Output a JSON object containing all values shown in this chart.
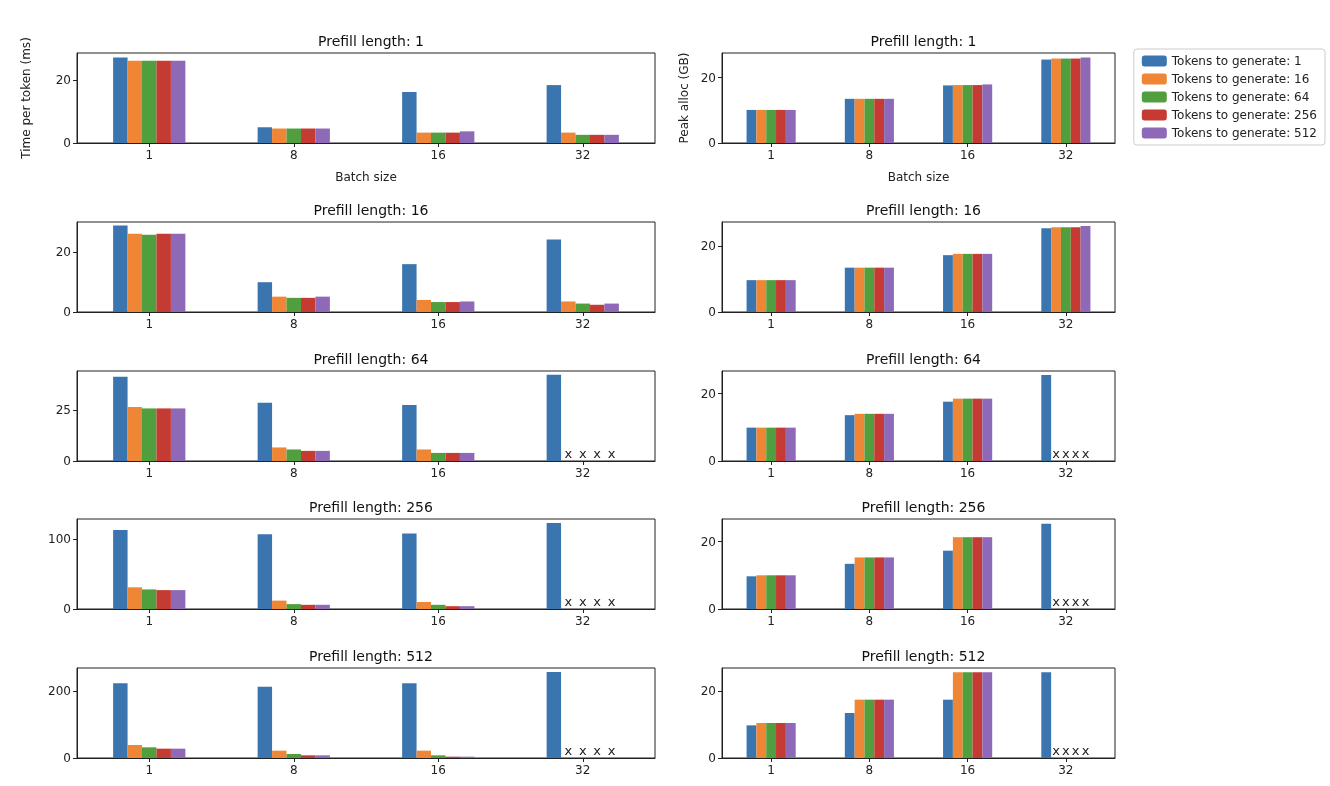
{
  "chart_data": [
    {
      "type": "bar",
      "title": "Prefill length: 1",
      "xlabel": "Batch size",
      "ylabel": "Time per token (ms)",
      "categories": [
        "1",
        "8",
        "16",
        "32"
      ],
      "ylim": [
        0,
        28.6
      ],
      "yticks": [
        0,
        20
      ],
      "series": [
        {
          "color": "#3b75af",
          "values": [
            27.2,
            5.0,
            16.2,
            18.4
          ]
        },
        {
          "color": "#ef8636",
          "values": [
            26.1,
            4.6,
            3.3,
            3.3
          ]
        },
        {
          "color": "#519e3e",
          "values": [
            26.1,
            4.6,
            3.3,
            2.6
          ]
        },
        {
          "color": "#c53a32",
          "values": [
            26.1,
            4.6,
            3.3,
            2.6
          ]
        },
        {
          "color": "#8d69b8",
          "values": [
            26.1,
            4.6,
            3.7,
            2.6
          ]
        }
      ]
    },
    {
      "type": "bar",
      "title": "Prefill length: 1",
      "xlabel": "Batch size",
      "ylabel": "Peak alloc (GB)",
      "categories": [
        "1",
        "8",
        "16",
        "32"
      ],
      "ylim": [
        0,
        27.5
      ],
      "yticks": [
        0,
        20
      ],
      "legend": "top right",
      "series": [
        {
          "name": "Tokens to generate: 1",
          "color": "#3b75af",
          "values": [
            10.1,
            13.5,
            17.6,
            25.5
          ]
        },
        {
          "name": "Tokens to generate: 16",
          "color": "#ef8636",
          "values": [
            10.1,
            13.5,
            17.7,
            25.8
          ]
        },
        {
          "name": "Tokens to generate: 64",
          "color": "#519e3e",
          "values": [
            10.1,
            13.5,
            17.7,
            25.8
          ]
        },
        {
          "name": "Tokens to generate: 256",
          "color": "#c53a32",
          "values": [
            10.1,
            13.5,
            17.7,
            25.8
          ]
        },
        {
          "name": "Tokens to generate: 512",
          "color": "#8d69b8",
          "values": [
            10.1,
            13.5,
            17.9,
            26.1
          ]
        }
      ]
    },
    {
      "type": "bar",
      "title": "Prefill length: 16",
      "categories": [
        "1",
        "8",
        "16",
        "32"
      ],
      "ylim": [
        0,
        29.9
      ],
      "yticks": [
        0,
        20
      ],
      "series": [
        {
          "color": "#3b75af",
          "values": [
            28.7,
            9.9,
            15.9,
            24.1
          ]
        },
        {
          "color": "#ef8636",
          "values": [
            26.0,
            5.1,
            4.0,
            3.5
          ]
        },
        {
          "color": "#519e3e",
          "values": [
            25.7,
            4.7,
            3.3,
            2.8
          ]
        },
        {
          "color": "#c53a32",
          "values": [
            26.0,
            4.7,
            3.3,
            2.4
          ]
        },
        {
          "color": "#8d69b8",
          "values": [
            26.0,
            5.1,
            3.5,
            2.8
          ]
        }
      ]
    },
    {
      "type": "bar",
      "title": "Prefill length: 16",
      "categories": [
        "1",
        "8",
        "16",
        "32"
      ],
      "ylim": [
        0,
        27.4
      ],
      "yticks": [
        0,
        20
      ],
      "series": [
        {
          "color": "#3b75af",
          "values": [
            9.7,
            13.5,
            17.3,
            25.5
          ]
        },
        {
          "color": "#ef8636",
          "values": [
            9.7,
            13.5,
            17.7,
            25.8
          ]
        },
        {
          "color": "#519e3e",
          "values": [
            9.7,
            13.5,
            17.7,
            25.8
          ]
        },
        {
          "color": "#c53a32",
          "values": [
            9.7,
            13.5,
            17.7,
            25.8
          ]
        },
        {
          "color": "#8d69b8",
          "values": [
            9.7,
            13.5,
            17.7,
            26.2
          ]
        }
      ]
    },
    {
      "type": "bar",
      "title": "Prefill length: 64",
      "categories": [
        "1",
        "8",
        "16",
        "32"
      ],
      "ylim": [
        0,
        44.5
      ],
      "yticks": [
        0,
        25
      ],
      "series": [
        {
          "color": "#3b75af",
          "values": [
            41.6,
            28.8,
            27.7,
            42.6
          ]
        },
        {
          "color": "#ef8636",
          "values": [
            26.7,
            6.7,
            5.7,
            null
          ],
          "value_labels": [
            null,
            null,
            null,
            "x"
          ]
        },
        {
          "color": "#519e3e",
          "values": [
            26.0,
            5.7,
            4.0,
            null
          ],
          "value_labels": [
            null,
            null,
            null,
            "x"
          ]
        },
        {
          "color": "#c53a32",
          "values": [
            26.0,
            5.0,
            4.0,
            null
          ],
          "value_labels": [
            null,
            null,
            null,
            "x"
          ]
        },
        {
          "color": "#8d69b8",
          "values": [
            26.0,
            5.0,
            4.0,
            null
          ],
          "value_labels": [
            null,
            null,
            null,
            "x"
          ]
        }
      ]
    },
    {
      "type": "bar",
      "title": "Prefill length: 64",
      "categories": [
        "1",
        "8",
        "16",
        "32"
      ],
      "ylim": [
        0,
        26.7
      ],
      "yticks": [
        0,
        20
      ],
      "series": [
        {
          "color": "#3b75af",
          "values": [
            9.9,
            13.6,
            17.6,
            25.5
          ]
        },
        {
          "color": "#ef8636",
          "values": [
            9.9,
            14.0,
            18.5,
            null
          ],
          "value_labels": [
            null,
            null,
            null,
            "x"
          ]
        },
        {
          "color": "#519e3e",
          "values": [
            9.9,
            14.0,
            18.5,
            null
          ],
          "value_labels": [
            null,
            null,
            null,
            "x"
          ]
        },
        {
          "color": "#c53a32",
          "values": [
            9.9,
            14.0,
            18.5,
            null
          ],
          "value_labels": [
            null,
            null,
            null,
            "x"
          ]
        },
        {
          "color": "#8d69b8",
          "values": [
            9.9,
            14.0,
            18.5,
            null
          ],
          "value_labels": [
            null,
            null,
            null,
            "x"
          ]
        }
      ]
    },
    {
      "type": "bar",
      "title": "Prefill length: 256",
      "categories": [
        "1",
        "8",
        "16",
        "32"
      ],
      "ylim": [
        0,
        128.7
      ],
      "yticks": [
        0,
        100
      ],
      "series": [
        {
          "color": "#3b75af",
          "values": [
            113,
            107,
            108,
            123
          ]
        },
        {
          "color": "#ef8636",
          "values": [
            31,
            12,
            10,
            null
          ],
          "value_labels": [
            null,
            null,
            null,
            "x"
          ]
        },
        {
          "color": "#519e3e",
          "values": [
            28,
            7,
            6,
            null
          ],
          "value_labels": [
            null,
            null,
            null,
            "x"
          ]
        },
        {
          "color": "#c53a32",
          "values": [
            27,
            6,
            4,
            null
          ],
          "value_labels": [
            null,
            null,
            null,
            "x"
          ]
        },
        {
          "color": "#8d69b8",
          "values": [
            27,
            6,
            4,
            null
          ],
          "value_labels": [
            null,
            null,
            null,
            "x"
          ]
        }
      ]
    },
    {
      "type": "bar",
      "title": "Prefill length: 256",
      "categories": [
        "1",
        "8",
        "16",
        "32"
      ],
      "ylim": [
        0,
        26.7
      ],
      "yticks": [
        0,
        20
      ],
      "series": [
        {
          "color": "#3b75af",
          "values": [
            9.7,
            13.4,
            17.3,
            25.3
          ]
        },
        {
          "color": "#ef8636",
          "values": [
            10.0,
            15.3,
            21.3,
            null
          ],
          "value_labels": [
            null,
            null,
            null,
            "x"
          ]
        },
        {
          "color": "#519e3e",
          "values": [
            10.0,
            15.3,
            21.3,
            null
          ],
          "value_labels": [
            null,
            null,
            null,
            "x"
          ]
        },
        {
          "color": "#c53a32",
          "values": [
            10.0,
            15.3,
            21.3,
            null
          ],
          "value_labels": [
            null,
            null,
            null,
            "x"
          ]
        },
        {
          "color": "#8d69b8",
          "values": [
            10.0,
            15.3,
            21.3,
            null
          ],
          "value_labels": [
            null,
            null,
            null,
            "x"
          ]
        }
      ]
    },
    {
      "type": "bar",
      "title": "Prefill length: 512",
      "categories": [
        "1",
        "8",
        "16",
        "32"
      ],
      "ylim": [
        0,
        270
      ],
      "yticks": [
        0,
        200
      ],
      "series": [
        {
          "color": "#3b75af",
          "values": [
            224,
            214,
            224,
            258
          ]
        },
        {
          "color": "#ef8636",
          "values": [
            39,
            22,
            22,
            null
          ],
          "value_labels": [
            null,
            null,
            null,
            "x"
          ]
        },
        {
          "color": "#519e3e",
          "values": [
            32,
            12,
            8,
            null
          ],
          "value_labels": [
            null,
            null,
            null,
            "x"
          ]
        },
        {
          "color": "#c53a32",
          "values": [
            28,
            8,
            4,
            null
          ],
          "value_labels": [
            null,
            null,
            null,
            "x"
          ]
        },
        {
          "color": "#8d69b8",
          "values": [
            28,
            8,
            4,
            null
          ],
          "value_labels": [
            null,
            null,
            null,
            "x"
          ]
        }
      ]
    },
    {
      "type": "bar",
      "title": "Prefill length: 512",
      "categories": [
        "1",
        "8",
        "16",
        "32"
      ],
      "ylim": [
        0,
        27
      ],
      "yticks": [
        0,
        20
      ],
      "series": [
        {
          "color": "#3b75af",
          "values": [
            9.8,
            13.5,
            17.5,
            25.7
          ]
        },
        {
          "color": "#ef8636",
          "values": [
            10.5,
            17.5,
            25.7,
            null
          ],
          "value_labels": [
            null,
            null,
            null,
            "x"
          ]
        },
        {
          "color": "#519e3e",
          "values": [
            10.5,
            17.5,
            25.7,
            null
          ],
          "value_labels": [
            null,
            null,
            null,
            "x"
          ]
        },
        {
          "color": "#c53a32",
          "values": [
            10.5,
            17.5,
            25.7,
            null
          ],
          "value_labels": [
            null,
            null,
            null,
            "x"
          ]
        },
        {
          "color": "#8d69b8",
          "values": [
            10.5,
            17.5,
            25.7,
            null
          ],
          "value_labels": [
            null,
            null,
            null,
            "x"
          ]
        }
      ]
    }
  ]
}
